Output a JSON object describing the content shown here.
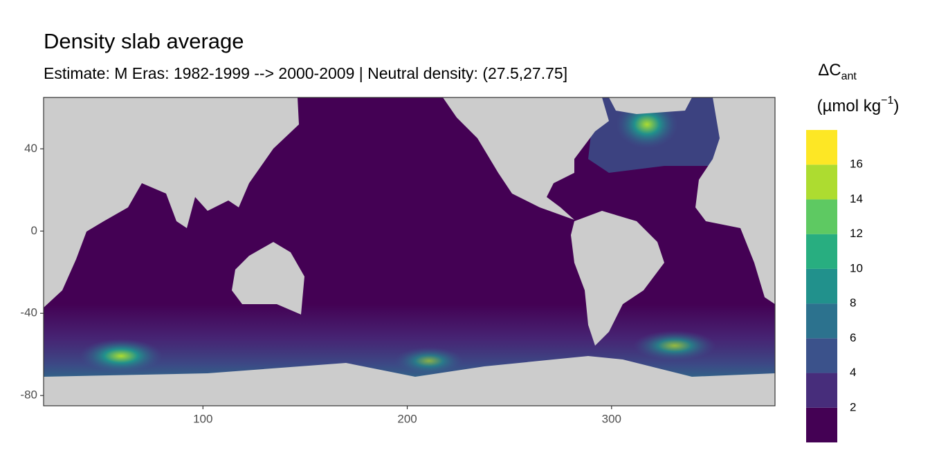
{
  "chart_data": {
    "type": "raster-map",
    "title": "Density slab average",
    "subtitle": "Estimate: M Eras: 1982-1999 --> 2000-2009 | Neutral density: (27.5,27.75]",
    "xlim": [
      22,
      380
    ],
    "ylim": [
      -85,
      65
    ],
    "xticks": [
      100,
      200,
      300
    ],
    "yticks": [
      -80,
      -40,
      0,
      40
    ],
    "land_color": "#cccccc",
    "legend": {
      "title": "ΔC",
      "title_sub": "ant",
      "unit": "(µmol kg",
      "unit_sup": "−1",
      "unit_close": ")",
      "limits": [
        0,
        18
      ],
      "breaks": [
        2,
        4,
        6,
        8,
        10,
        12,
        14,
        16
      ],
      "colors": [
        "#440154",
        "#472d7b",
        "#3b528b",
        "#2c728e",
        "#21918c",
        "#28ae80",
        "#5ec962",
        "#addc30",
        "#fde725"
      ]
    }
  }
}
